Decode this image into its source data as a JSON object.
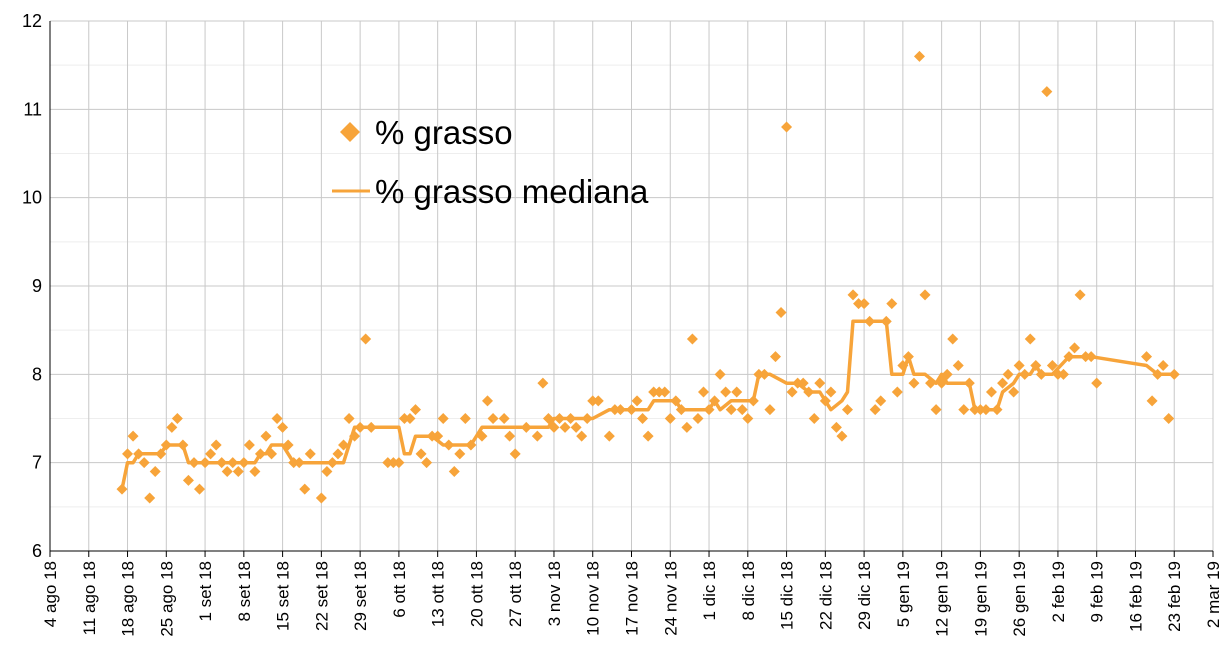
{
  "chart_data": {
    "type": "scatter",
    "title": "",
    "xlabel": "",
    "ylabel": "",
    "ylim": [
      6,
      12
    ],
    "xlim": [
      "2018-08-04",
      "2019-03-02"
    ],
    "y_ticks": [
      "6",
      "7",
      "8",
      "9",
      "10",
      "11",
      "12"
    ],
    "x_ticks": [
      {
        "date": "2018-08-04",
        "label": "4 ago 18"
      },
      {
        "date": "2018-08-11",
        "label": "11 ago 18"
      },
      {
        "date": "2018-08-18",
        "label": "18 ago 18"
      },
      {
        "date": "2018-08-25",
        "label": "25 ago 18"
      },
      {
        "date": "2018-09-01",
        "label": "1 set 18"
      },
      {
        "date": "2018-09-08",
        "label": "8 set 18"
      },
      {
        "date": "2018-09-15",
        "label": "15 set 18"
      },
      {
        "date": "2018-09-22",
        "label": "22 set 18"
      },
      {
        "date": "2018-09-29",
        "label": "29 set 18"
      },
      {
        "date": "2018-10-06",
        "label": "6 ott 18"
      },
      {
        "date": "2018-10-13",
        "label": "13 ott 18"
      },
      {
        "date": "2018-10-20",
        "label": "20 ott 18"
      },
      {
        "date": "2018-10-27",
        "label": "27 ott 18"
      },
      {
        "date": "2018-11-03",
        "label": "3 nov 18"
      },
      {
        "date": "2018-11-10",
        "label": "10 nov 18"
      },
      {
        "date": "2018-11-17",
        "label": "17 nov 18"
      },
      {
        "date": "2018-11-24",
        "label": "24 nov 18"
      },
      {
        "date": "2018-12-01",
        "label": "1 dic 18"
      },
      {
        "date": "2018-12-08",
        "label": "8 dic 18"
      },
      {
        "date": "2018-12-15",
        "label": "15 dic 18"
      },
      {
        "date": "2018-12-22",
        "label": "22 dic 18"
      },
      {
        "date": "2018-12-29",
        "label": "29 dic 18"
      },
      {
        "date": "2019-01-05",
        "label": "5 gen 19"
      },
      {
        "date": "2019-01-12",
        "label": "12 gen 19"
      },
      {
        "date": "2019-01-19",
        "label": "19 gen 19"
      },
      {
        "date": "2019-01-26",
        "label": "26 gen 19"
      },
      {
        "date": "2019-02-02",
        "label": "2 feb 19"
      },
      {
        "date": "2019-02-09",
        "label": "9 feb 19"
      },
      {
        "date": "2019-02-16",
        "label": "16 feb 19"
      },
      {
        "date": "2019-02-23",
        "label": "23 feb 19"
      },
      {
        "date": "2019-03-02",
        "label": "2 mar 19"
      }
    ],
    "grid": true,
    "legend_position": "upper-left inside plot",
    "series": [
      {
        "name": "% grasso",
        "kind": "scatter",
        "marker": "diamond",
        "color": "#F7A43A",
        "points": [
          [
            "2018-08-17",
            6.7
          ],
          [
            "2018-08-18",
            7.1
          ],
          [
            "2018-08-19",
            7.3
          ],
          [
            "2018-08-20",
            7.1
          ],
          [
            "2018-08-21",
            7.0
          ],
          [
            "2018-08-22",
            6.6
          ],
          [
            "2018-08-23",
            6.9
          ],
          [
            "2018-08-24",
            7.1
          ],
          [
            "2018-08-25",
            7.2
          ],
          [
            "2018-08-26",
            7.4
          ],
          [
            "2018-08-27",
            7.5
          ],
          [
            "2018-08-28",
            7.2
          ],
          [
            "2018-08-29",
            6.8
          ],
          [
            "2018-08-30",
            7.0
          ],
          [
            "2018-08-31",
            6.7
          ],
          [
            "2018-09-01",
            7.0
          ],
          [
            "2018-09-02",
            7.1
          ],
          [
            "2018-09-03",
            7.2
          ],
          [
            "2018-09-04",
            7.0
          ],
          [
            "2018-09-05",
            6.9
          ],
          [
            "2018-09-06",
            7.0
          ],
          [
            "2018-09-07",
            6.9
          ],
          [
            "2018-09-08",
            7.0
          ],
          [
            "2018-09-09",
            7.2
          ],
          [
            "2018-09-10",
            6.9
          ],
          [
            "2018-09-11",
            7.1
          ],
          [
            "2018-09-12",
            7.3
          ],
          [
            "2018-09-13",
            7.1
          ],
          [
            "2018-09-14",
            7.5
          ],
          [
            "2018-09-15",
            7.4
          ],
          [
            "2018-09-16",
            7.2
          ],
          [
            "2018-09-17",
            7.0
          ],
          [
            "2018-09-18",
            7.0
          ],
          [
            "2018-09-19",
            6.7
          ],
          [
            "2018-09-20",
            7.1
          ],
          [
            "2018-09-22",
            6.6
          ],
          [
            "2018-09-23",
            6.9
          ],
          [
            "2018-09-24",
            7.0
          ],
          [
            "2018-09-25",
            7.1
          ],
          [
            "2018-09-26",
            7.2
          ],
          [
            "2018-09-27",
            7.5
          ],
          [
            "2018-09-28",
            7.3
          ],
          [
            "2018-09-29",
            7.4
          ],
          [
            "2018-09-30",
            8.4
          ],
          [
            "2018-10-01",
            7.4
          ],
          [
            "2018-10-04",
            7.0
          ],
          [
            "2018-10-05",
            7.0
          ],
          [
            "2018-10-06",
            7.0
          ],
          [
            "2018-10-07",
            7.5
          ],
          [
            "2018-10-08",
            7.5
          ],
          [
            "2018-10-09",
            7.6
          ],
          [
            "2018-10-10",
            7.1
          ],
          [
            "2018-10-11",
            7.0
          ],
          [
            "2018-10-12",
            7.3
          ],
          [
            "2018-10-13",
            7.3
          ],
          [
            "2018-10-14",
            7.5
          ],
          [
            "2018-10-15",
            7.2
          ],
          [
            "2018-10-16",
            6.9
          ],
          [
            "2018-10-17",
            7.1
          ],
          [
            "2018-10-18",
            7.5
          ],
          [
            "2018-10-19",
            7.2
          ],
          [
            "2018-10-21",
            7.3
          ],
          [
            "2018-10-22",
            7.7
          ],
          [
            "2018-10-23",
            7.5
          ],
          [
            "2018-10-25",
            7.5
          ],
          [
            "2018-10-26",
            7.3
          ],
          [
            "2018-10-27",
            7.1
          ],
          [
            "2018-10-29",
            7.4
          ],
          [
            "2018-10-31",
            7.3
          ],
          [
            "2018-11-01",
            7.9
          ],
          [
            "2018-11-02",
            7.5
          ],
          [
            "2018-11-03",
            7.4
          ],
          [
            "2018-11-04",
            7.5
          ],
          [
            "2018-11-05",
            7.4
          ],
          [
            "2018-11-06",
            7.5
          ],
          [
            "2018-11-07",
            7.4
          ],
          [
            "2018-11-08",
            7.3
          ],
          [
            "2018-11-09",
            7.5
          ],
          [
            "2018-11-10",
            7.7
          ],
          [
            "2018-11-11",
            7.7
          ],
          [
            "2018-11-13",
            7.3
          ],
          [
            "2018-11-14",
            7.6
          ],
          [
            "2018-11-15",
            7.6
          ],
          [
            "2018-11-17",
            7.6
          ],
          [
            "2018-11-18",
            7.7
          ],
          [
            "2018-11-19",
            7.5
          ],
          [
            "2018-11-20",
            7.3
          ],
          [
            "2018-11-21",
            7.8
          ],
          [
            "2018-11-22",
            7.8
          ],
          [
            "2018-11-23",
            7.8
          ],
          [
            "2018-11-24",
            7.5
          ],
          [
            "2018-11-25",
            7.7
          ],
          [
            "2018-11-26",
            7.6
          ],
          [
            "2018-11-27",
            7.4
          ],
          [
            "2018-11-28",
            8.4
          ],
          [
            "2018-11-29",
            7.5
          ],
          [
            "2018-11-30",
            7.8
          ],
          [
            "2018-12-01",
            7.6
          ],
          [
            "2018-12-02",
            7.7
          ],
          [
            "2018-12-03",
            8.0
          ],
          [
            "2018-12-04",
            7.8
          ],
          [
            "2018-12-05",
            7.6
          ],
          [
            "2018-12-06",
            7.8
          ],
          [
            "2018-12-07",
            7.6
          ],
          [
            "2018-12-08",
            7.5
          ],
          [
            "2018-12-09",
            7.7
          ],
          [
            "2018-12-10",
            8.0
          ],
          [
            "2018-12-11",
            8.0
          ],
          [
            "2018-12-12",
            7.6
          ],
          [
            "2018-12-13",
            8.2
          ],
          [
            "2018-12-14",
            8.7
          ],
          [
            "2018-12-15",
            10.8
          ],
          [
            "2018-12-16",
            7.8
          ],
          [
            "2018-12-17",
            7.9
          ],
          [
            "2018-12-18",
            7.9
          ],
          [
            "2018-12-19",
            7.8
          ],
          [
            "2018-12-20",
            7.5
          ],
          [
            "2018-12-21",
            7.9
          ],
          [
            "2018-12-22",
            7.7
          ],
          [
            "2018-12-23",
            7.8
          ],
          [
            "2018-12-24",
            7.4
          ],
          [
            "2018-12-25",
            7.3
          ],
          [
            "2018-12-26",
            7.6
          ],
          [
            "2018-12-27",
            8.9
          ],
          [
            "2018-12-28",
            8.8
          ],
          [
            "2018-12-29",
            8.8
          ],
          [
            "2018-12-30",
            8.6
          ],
          [
            "2018-12-31",
            7.6
          ],
          [
            "2019-01-01",
            7.7
          ],
          [
            "2019-01-02",
            8.6
          ],
          [
            "2019-01-03",
            8.8
          ],
          [
            "2019-01-04",
            7.8
          ],
          [
            "2019-01-05",
            8.1
          ],
          [
            "2019-01-06",
            8.2
          ],
          [
            "2019-01-07",
            7.9
          ],
          [
            "2019-01-08",
            11.6
          ],
          [
            "2019-01-09",
            8.9
          ],
          [
            "2019-01-10",
            7.9
          ],
          [
            "2019-01-11",
            7.6
          ],
          [
            "2019-01-12",
            7.9
          ],
          [
            "2019-01-13",
            8.0
          ],
          [
            "2019-01-14",
            8.4
          ],
          [
            "2019-01-15",
            8.1
          ],
          [
            "2019-01-16",
            7.6
          ],
          [
            "2019-01-17",
            7.9
          ],
          [
            "2019-01-18",
            7.6
          ],
          [
            "2019-01-19",
            7.6
          ],
          [
            "2019-01-20",
            7.6
          ],
          [
            "2019-01-21",
            7.8
          ],
          [
            "2019-01-22",
            7.6
          ],
          [
            "2019-01-23",
            7.9
          ],
          [
            "2019-01-24",
            8.0
          ],
          [
            "2019-01-25",
            7.8
          ],
          [
            "2019-01-26",
            8.1
          ],
          [
            "2019-01-27",
            8.0
          ],
          [
            "2019-01-28",
            8.4
          ],
          [
            "2019-01-29",
            8.1
          ],
          [
            "2019-01-30",
            8.0
          ],
          [
            "2019-01-31",
            11.2
          ],
          [
            "2019-02-01",
            8.1
          ],
          [
            "2019-02-02",
            8.0
          ],
          [
            "2019-02-03",
            8.0
          ],
          [
            "2019-02-04",
            8.2
          ],
          [
            "2019-02-05",
            8.3
          ],
          [
            "2019-02-06",
            8.9
          ],
          [
            "2019-02-07",
            8.2
          ],
          [
            "2019-02-08",
            8.2
          ],
          [
            "2019-02-09",
            7.9
          ],
          [
            "2019-02-18",
            8.2
          ],
          [
            "2019-02-19",
            7.7
          ],
          [
            "2019-02-20",
            8.0
          ],
          [
            "2019-02-21",
            8.1
          ],
          [
            "2019-02-22",
            7.5
          ],
          [
            "2019-02-23",
            8.0
          ]
        ]
      },
      {
        "name": "% grasso mediana",
        "kind": "line",
        "color": "#F7A43A",
        "points": [
          [
            "2018-08-17",
            6.7
          ],
          [
            "2018-08-18",
            7.0
          ],
          [
            "2018-08-19",
            7.0
          ],
          [
            "2018-08-20",
            7.1
          ],
          [
            "2018-08-24",
            7.1
          ],
          [
            "2018-08-25",
            7.2
          ],
          [
            "2018-08-27",
            7.2
          ],
          [
            "2018-08-28",
            7.2
          ],
          [
            "2018-08-29",
            7.0
          ],
          [
            "2018-09-10",
            7.0
          ],
          [
            "2018-09-11",
            7.1
          ],
          [
            "2018-09-12",
            7.1
          ],
          [
            "2018-09-13",
            7.2
          ],
          [
            "2018-09-15",
            7.2
          ],
          [
            "2018-09-17",
            7.0
          ],
          [
            "2018-09-26",
            7.0
          ],
          [
            "2018-09-28",
            7.4
          ],
          [
            "2018-10-06",
            7.4
          ],
          [
            "2018-10-07",
            7.1
          ],
          [
            "2018-10-08",
            7.1
          ],
          [
            "2018-10-09",
            7.3
          ],
          [
            "2018-10-12",
            7.3
          ],
          [
            "2018-10-14",
            7.2
          ],
          [
            "2018-10-17",
            7.2
          ],
          [
            "2018-10-19",
            7.2
          ],
          [
            "2018-10-21",
            7.4
          ],
          [
            "2018-10-30",
            7.4
          ],
          [
            "2018-11-02",
            7.4
          ],
          [
            "2018-11-03",
            7.5
          ],
          [
            "2018-11-10",
            7.5
          ],
          [
            "2018-11-13",
            7.6
          ],
          [
            "2018-11-20",
            7.6
          ],
          [
            "2018-11-21",
            7.7
          ],
          [
            "2018-11-25",
            7.7
          ],
          [
            "2018-11-26",
            7.6
          ],
          [
            "2018-12-01",
            7.6
          ],
          [
            "2018-12-02",
            7.7
          ],
          [
            "2018-12-03",
            7.6
          ],
          [
            "2018-12-05",
            7.7
          ],
          [
            "2018-12-09",
            7.7
          ],
          [
            "2018-12-10",
            8.0
          ],
          [
            "2018-12-12",
            8.0
          ],
          [
            "2018-12-15",
            7.9
          ],
          [
            "2018-12-17",
            7.9
          ],
          [
            "2018-12-19",
            7.8
          ],
          [
            "2018-12-21",
            7.8
          ],
          [
            "2018-12-23",
            7.6
          ],
          [
            "2018-12-25",
            7.7
          ],
          [
            "2018-12-26",
            7.8
          ],
          [
            "2018-12-27",
            8.6
          ],
          [
            "2018-12-31",
            8.6
          ],
          [
            "2019-01-02",
            8.6
          ],
          [
            "2019-01-03",
            8.0
          ],
          [
            "2019-01-05",
            8.0
          ],
          [
            "2019-01-06",
            8.2
          ],
          [
            "2019-01-07",
            8.0
          ],
          [
            "2019-01-09",
            8.0
          ],
          [
            "2019-01-11",
            7.9
          ],
          [
            "2019-01-12",
            8.0
          ],
          [
            "2019-01-13",
            7.9
          ],
          [
            "2019-01-17",
            7.9
          ],
          [
            "2019-01-18",
            7.6
          ],
          [
            "2019-01-22",
            7.6
          ],
          [
            "2019-01-23",
            7.8
          ],
          [
            "2019-01-25",
            7.9
          ],
          [
            "2019-01-26",
            8.0
          ],
          [
            "2019-01-28",
            8.0
          ],
          [
            "2019-01-29",
            8.1
          ],
          [
            "2019-01-30",
            8.0
          ],
          [
            "2019-02-01",
            8.0
          ],
          [
            "2019-02-04",
            8.2
          ],
          [
            "2019-02-08",
            8.2
          ],
          [
            "2019-02-18",
            8.1
          ],
          [
            "2019-02-20",
            8.0
          ],
          [
            "2019-02-23",
            8.0
          ]
        ]
      }
    ]
  }
}
